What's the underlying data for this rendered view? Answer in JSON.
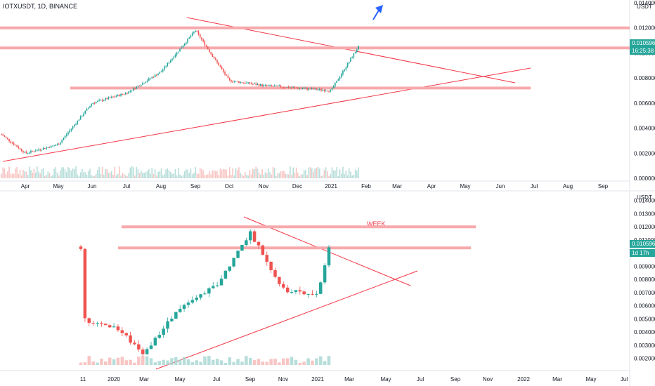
{
  "chart_data": [
    {
      "type": "candlestick",
      "title": "IOTXUSDT, 1D, BINANCE",
      "currency_label": "USDT",
      "price_ticks": [
        "0.014000",
        "0.012000",
        "0.010000",
        "0.008000",
        "0.006000",
        "0.004000",
        "0.002000",
        "0.000000"
      ],
      "x_ticks": [
        "Apr",
        "May",
        "Jun",
        "Jul",
        "Aug",
        "Sep",
        "Oct",
        "Nov",
        "Dec",
        "2021",
        "Feb",
        "Mar",
        "Apr",
        "May",
        "Jun",
        "Jul",
        "Aug",
        "Sep"
      ],
      "last_price": "0.010596",
      "countdown": "16:25:38",
      "ylim": [
        0.0,
        0.014
      ],
      "horizontal_levels": [
        0.012,
        0.0104,
        0.0072
      ],
      "trendlines": [
        {
          "from": [
            "Sep",
            0.0127
          ],
          "to": [
            "Jul",
            0.0076
          ]
        },
        {
          "from": [
            "Apr",
            0.0012
          ],
          "to": [
            "Jul",
            0.0088
          ]
        }
      ],
      "arrow": "up-right",
      "close_path": [
        [
          "Mar",
          0.0035
        ],
        [
          "Apr",
          0.002
        ],
        [
          "May",
          0.0027
        ],
        [
          "Jun",
          0.006
        ],
        [
          "Jul",
          0.0068
        ],
        [
          "Aug",
          0.0085
        ],
        [
          "Sep",
          0.0118
        ],
        [
          "Oct",
          0.0078
        ],
        [
          "Nov",
          0.0074
        ],
        [
          "Dec",
          0.0072
        ],
        [
          "2021",
          0.007
        ],
        [
          "Feb",
          0.0105
        ]
      ]
    },
    {
      "type": "candlestick",
      "title": "WEEK",
      "currency_label": "USDT",
      "price_ticks": [
        "0.014000",
        "0.013000",
        "0.012000",
        "0.011000",
        "0.010000",
        "0.009000",
        "0.008000",
        "0.007000",
        "0.006000",
        "0.005000",
        "0.004000",
        "0.003000",
        "0.002000"
      ],
      "x_ticks": [
        "11",
        "2020",
        "Mar",
        "May",
        "Jul",
        "Sep",
        "Nov",
        "2021",
        "Mar",
        "May",
        "Jul",
        "Sep",
        "Nov",
        "2022",
        "Mar",
        "May",
        "Jul"
      ],
      "last_price": "0.010596",
      "countdown": "1d 17h",
      "ylim": [
        0.0015,
        0.0142
      ],
      "horizontal_levels": [
        0.012,
        0.0104
      ],
      "trendlines": [
        {
          "from": [
            "Sep",
            0.0127
          ],
          "to": [
            "Jul",
            0.008
          ]
        },
        {
          "from": [
            "Mar",
            0.0012
          ],
          "to": [
            "Jul",
            0.0087
          ]
        }
      ],
      "close_path": [
        [
          "11",
          0.005
        ],
        [
          "2020",
          0.0044
        ],
        [
          "Mar",
          0.0024
        ],
        [
          "May",
          0.0058
        ],
        [
          "Jul",
          0.0075
        ],
        [
          "Sep",
          0.0116
        ],
        [
          "Nov",
          0.0072
        ],
        [
          "2021",
          0.0068
        ],
        [
          "Mar",
          0.0105
        ]
      ]
    }
  ]
}
